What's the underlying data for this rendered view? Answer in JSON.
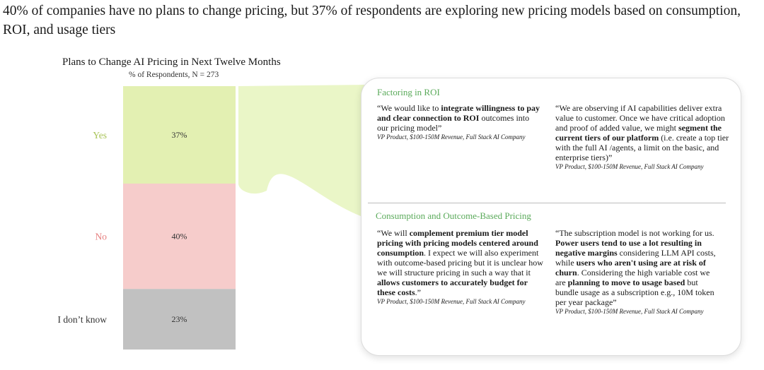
{
  "headline": "40% of companies have no plans to change pricing, but 37% of respondents are exploring new pricing models based on consumption, ROI, and usage tiers",
  "chart_data": {
    "type": "bar",
    "stacked": true,
    "title": "Plans to Change AI Pricing in Next Twelve Months",
    "subtitle": "% of Respondents, N = 273",
    "categories": [
      "Yes",
      "No",
      "I don't know"
    ],
    "values": [
      37,
      40,
      23
    ],
    "value_labels": [
      "37%",
      "40%",
      "23%"
    ],
    "category_labels": [
      "Yes",
      "No",
      "I don’t know"
    ],
    "colors": [
      "#e3f0b2",
      "#f6cccb",
      "#c1c1c1"
    ],
    "label_colors": [
      "#a8c356",
      "#e67f7f",
      "#333333"
    ],
    "highlight_color": "#d9ee99"
  },
  "card": {
    "sections": [
      {
        "title": "Factoring in ROI",
        "quotes": [
          {
            "parts": [
              {
                "t": "“We would like to "
              },
              {
                "t": "integrate willingness to pay and clear connection to ROI",
                "b": true
              },
              {
                "t": " outcomes into our pricing model”"
              }
            ],
            "attribution": "VP Product, $100-150M Revenue, Full Stack AI Company"
          },
          {
            "parts": [
              {
                "t": "“We are observing if AI capabilities deliver extra value to customer. Once we have critical adoption and proof of added value, we might "
              },
              {
                "t": "segment the current tiers of our platform",
                "b": true
              },
              {
                "t": " (i.e. create a top tier with the full AI /agents, a limit on the basic, and enterprise tiers)”"
              }
            ],
            "attribution": "VP Product, $100-150M Revenue, Full Stack AI Company"
          }
        ]
      },
      {
        "title": "Consumption and Outcome-Based Pricing",
        "quotes": [
          {
            "parts": [
              {
                "t": "“We will "
              },
              {
                "t": "complement premium tier model pricing with pricing models centered around consumption",
                "b": true
              },
              {
                "t": ". I expect we will also experiment with outcome-based pricing but it is unclear how we will structure pricing in such a way that it "
              },
              {
                "t": "allows customers to accurately budget for these costs",
                "b": true
              },
              {
                "t": ".”"
              }
            ],
            "attribution": "VP Product, $100-150M Revenue, Full Stack AI Company"
          },
          {
            "parts": [
              {
                "t": "“The subscription model is not working for us. "
              },
              {
                "t": "Power users tend to use a lot resulting in negative margins",
                "b": true
              },
              {
                "t": " considering LLM API costs, while "
              },
              {
                "t": "users who aren't using are at risk of churn",
                "b": true
              },
              {
                "t": ". Considering the high variable cost we are "
              },
              {
                "t": "planning to move to usage based",
                "b": true
              },
              {
                "t": " but bundle usage as a subscription e.g., 10M token per year package”"
              }
            ],
            "attribution": "VP Product, $100-150M Revenue, Full Stack AI Company"
          }
        ]
      }
    ]
  }
}
